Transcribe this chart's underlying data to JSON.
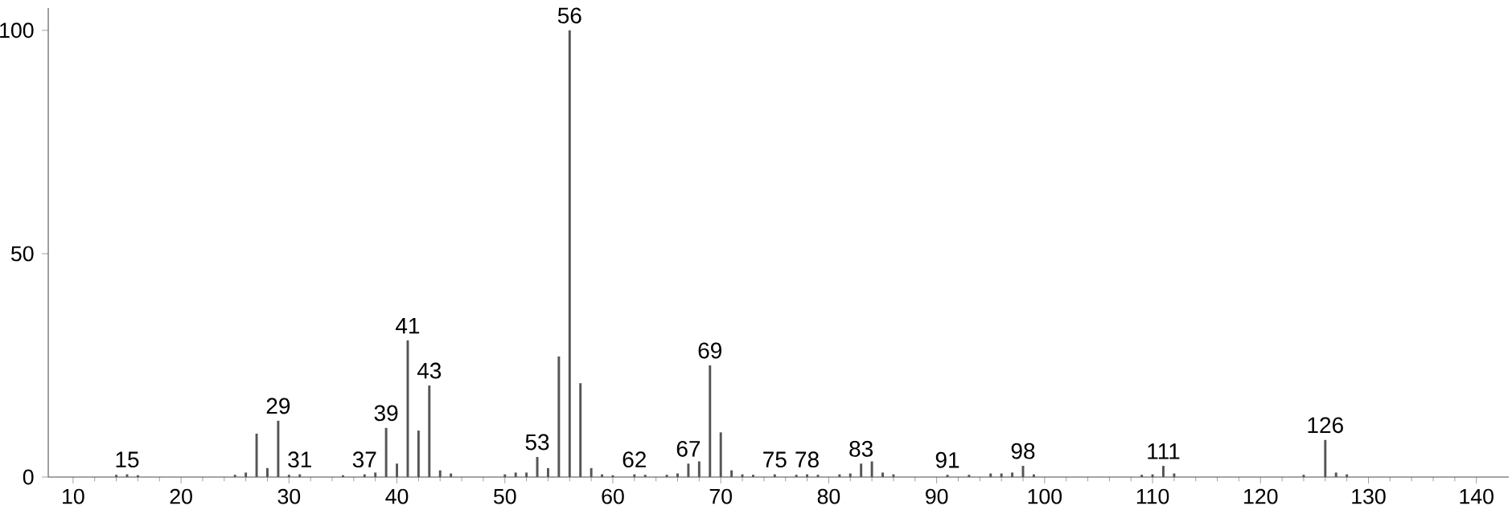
{
  "chart_data": {
    "type": "bar",
    "color": "#555555",
    "x": [
      14,
      15,
      16,
      25,
      26,
      27,
      28,
      29,
      30,
      31,
      35,
      37,
      38,
      39,
      40,
      41,
      42,
      43,
      44,
      45,
      50,
      51,
      52,
      53,
      54,
      55,
      56,
      57,
      58,
      59,
      60,
      62,
      63,
      65,
      66,
      67,
      68,
      69,
      70,
      71,
      72,
      73,
      75,
      77,
      78,
      79,
      81,
      82,
      83,
      84,
      85,
      86,
      91,
      93,
      95,
      96,
      97,
      98,
      99,
      109,
      110,
      111,
      112,
      124,
      126,
      127,
      128
    ],
    "values": [
      0.5,
      0.6,
      0.4,
      0.5,
      1,
      9.7,
      2,
      12.6,
      0.5,
      0.6,
      0.4,
      0.6,
      1,
      11,
      3,
      30.6,
      10.4,
      20.5,
      1.5,
      0.8,
      0.6,
      1,
      1,
      4.5,
      2,
      27,
      100,
      21,
      2,
      0.6,
      0.4,
      0.6,
      0.5,
      0.5,
      0.8,
      3,
      3.5,
      25,
      10,
      1.5,
      0.6,
      0.5,
      0.6,
      0.5,
      0.6,
      0.5,
      0.6,
      0.8,
      3,
      3.5,
      1,
      0.6,
      0.5,
      0.5,
      0.8,
      0.8,
      1,
      2.5,
      0.6,
      0.5,
      0.6,
      2.5,
      0.8,
      0.5,
      8.3,
      1,
      0.6
    ],
    "xlim": [
      7.7,
      143
    ],
    "ylim": [
      0,
      105
    ],
    "xticks": [
      10,
      20,
      30,
      40,
      50,
      60,
      70,
      80,
      90,
      100,
      110,
      120,
      130,
      140
    ],
    "yticks": [
      0,
      50,
      100
    ],
    "annotations": [
      {
        "text": "15",
        "x": 15,
        "y": 0.6
      },
      {
        "text": "29",
        "x": 29,
        "y": 12.6
      },
      {
        "text": "31",
        "x": 31,
        "y": 0.6
      },
      {
        "text": "37",
        "x": 37,
        "y": 0.6
      },
      {
        "text": "39",
        "x": 39,
        "y": 11
      },
      {
        "text": "41",
        "x": 41,
        "y": 30.6
      },
      {
        "text": "43",
        "x": 43,
        "y": 20.5
      },
      {
        "text": "53",
        "x": 53,
        "y": 4.5
      },
      {
        "text": "56",
        "x": 56,
        "y": 100
      },
      {
        "text": "62",
        "x": 62,
        "y": 0.6
      },
      {
        "text": "67",
        "x": 67,
        "y": 3
      },
      {
        "text": "69",
        "x": 69,
        "y": 25
      },
      {
        "text": "75",
        "x": 75,
        "y": 0.6
      },
      {
        "text": "78",
        "x": 78,
        "y": 0.6
      },
      {
        "text": "83",
        "x": 83,
        "y": 3
      },
      {
        "text": "91",
        "x": 91,
        "y": 0.5
      },
      {
        "text": "98",
        "x": 98,
        "y": 2.5
      },
      {
        "text": "111",
        "x": 111,
        "y": 2.5
      },
      {
        "text": "126",
        "x": 126,
        "y": 8.3
      }
    ]
  }
}
